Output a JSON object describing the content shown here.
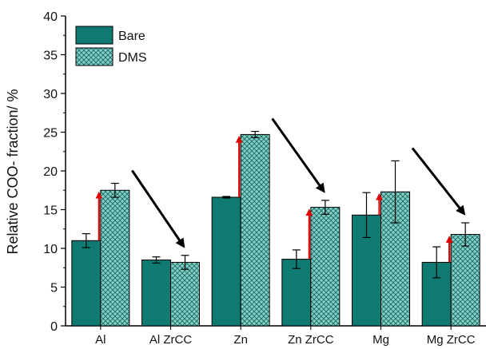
{
  "chart_data": {
    "type": "bar",
    "ylabel": "Relative COO- fraction/ %",
    "xlabel": "",
    "ylim": [
      0,
      40
    ],
    "yticks": [
      0,
      5,
      10,
      15,
      20,
      25,
      30,
      35,
      40
    ],
    "categories": [
      "Al",
      "Al ZrCC",
      "Zn",
      "Zn ZrCC",
      "Mg",
      "Mg ZrCC"
    ],
    "series": [
      {
        "name": "Bare",
        "color": "#0e7a72",
        "pattern": "solid",
        "values": [
          11.0,
          8.5,
          16.6,
          8.6,
          14.3,
          8.2
        ],
        "errors": [
          0.9,
          0.4,
          0.1,
          1.2,
          2.9,
          2.0
        ]
      },
      {
        "name": "DMS",
        "color": "#7fd1c8",
        "pattern": "crosshatch",
        "values": [
          17.5,
          8.2,
          24.7,
          15.3,
          17.3,
          11.8
        ],
        "errors": [
          0.9,
          0.9,
          0.4,
          0.9,
          4.0,
          1.5
        ]
      }
    ],
    "annotations": {
      "red_arrows": [
        {
          "category": "Al",
          "from": 11.0,
          "to": 17.5
        },
        {
          "category": "Zn",
          "from": 16.6,
          "to": 24.7
        },
        {
          "category": "Zn ZrCC",
          "from": 8.6,
          "to": 15.3
        },
        {
          "category": "Mg",
          "from": 14.3,
          "to": 17.3
        },
        {
          "category": "Mg ZrCC",
          "from": 8.2,
          "to": 11.8
        }
      ],
      "black_arrows": [
        {
          "from_category": "Al",
          "to_category": "Al ZrCC"
        },
        {
          "from_category": "Zn",
          "to_category": "Zn ZrCC"
        },
        {
          "from_category": "Mg",
          "to_category": "Mg ZrCC"
        }
      ]
    },
    "legend": "top-left",
    "grid": false
  }
}
